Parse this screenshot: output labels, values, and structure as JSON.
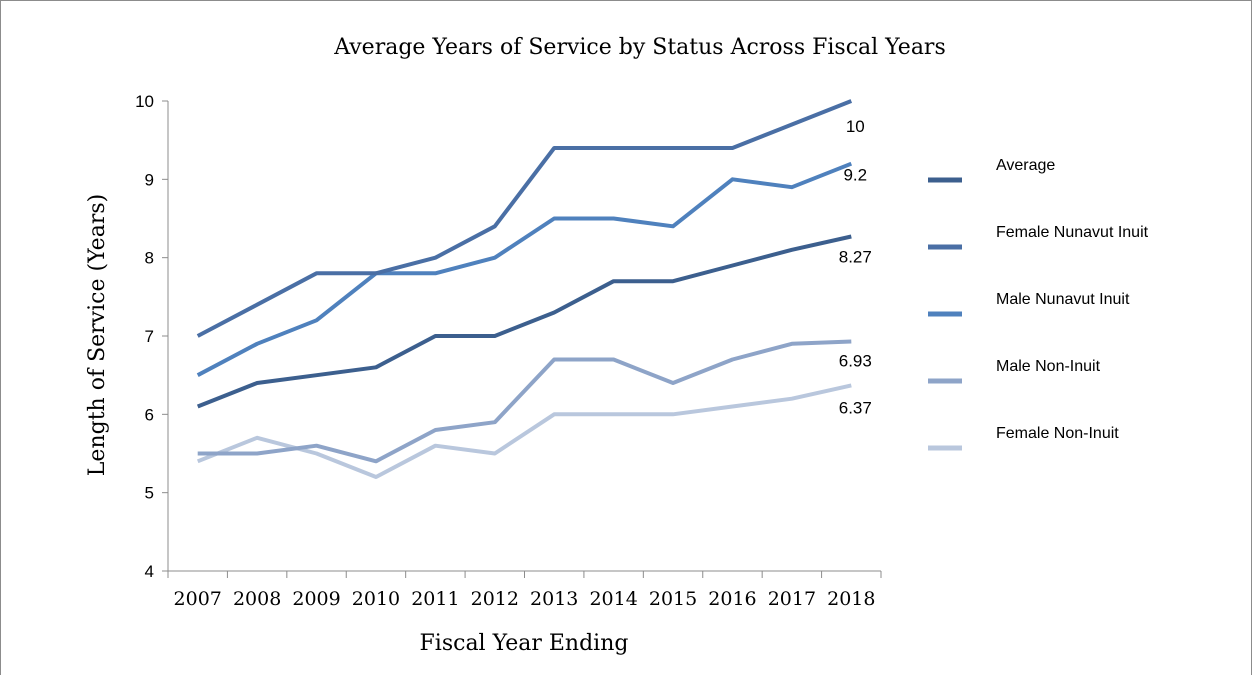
{
  "chart_data": {
    "type": "line",
    "title": "Average Years of Service by Status Across Fiscal Years",
    "xlabel": "Fiscal Year Ending",
    "ylabel": "Length of Service (Years)",
    "ylim": [
      4,
      10
    ],
    "yticks": [
      "4",
      "5",
      "6",
      "7",
      "8",
      "9",
      "10"
    ],
    "categories": [
      "2007",
      "2008",
      "2009",
      "2010",
      "2011",
      "2012",
      "2013",
      "2014",
      "2015",
      "2016",
      "2017",
      "2018"
    ],
    "grid": false,
    "legend_position": "right",
    "series": [
      {
        "name": "Average",
        "color": "#3c5f8e",
        "end_label": "8.27",
        "values": [
          6.1,
          6.4,
          6.5,
          6.6,
          7.0,
          7.0,
          7.3,
          7.7,
          7.7,
          7.9,
          8.1,
          8.27
        ]
      },
      {
        "name": "Female Nunavut Inuit",
        "color": "#4a6fa5",
        "end_label": "10",
        "values": [
          7.0,
          7.4,
          7.8,
          7.8,
          8.0,
          8.4,
          9.4,
          9.4,
          9.4,
          9.4,
          9.7,
          10.0
        ]
      },
      {
        "name": "Male Nunavut Inuit",
        "color": "#4f81bd",
        "end_label": "9.2",
        "values": [
          6.5,
          6.9,
          7.2,
          7.8,
          7.8,
          8.0,
          8.5,
          8.5,
          8.4,
          9.0,
          8.9,
          9.2
        ]
      },
      {
        "name": "Male Non-Inuit",
        "color": "#8ea4c8",
        "end_label": "6.93",
        "values": [
          5.5,
          5.5,
          5.6,
          5.4,
          5.8,
          5.9,
          6.7,
          6.7,
          6.4,
          6.7,
          6.9,
          6.93
        ]
      },
      {
        "name": "Female Non-Inuit",
        "color": "#b9c7dd",
        "end_label": "6.37",
        "values": [
          5.4,
          5.7,
          5.5,
          5.2,
          5.6,
          5.5,
          6.0,
          6.0,
          6.0,
          6.1,
          6.2,
          6.37
        ]
      }
    ]
  }
}
